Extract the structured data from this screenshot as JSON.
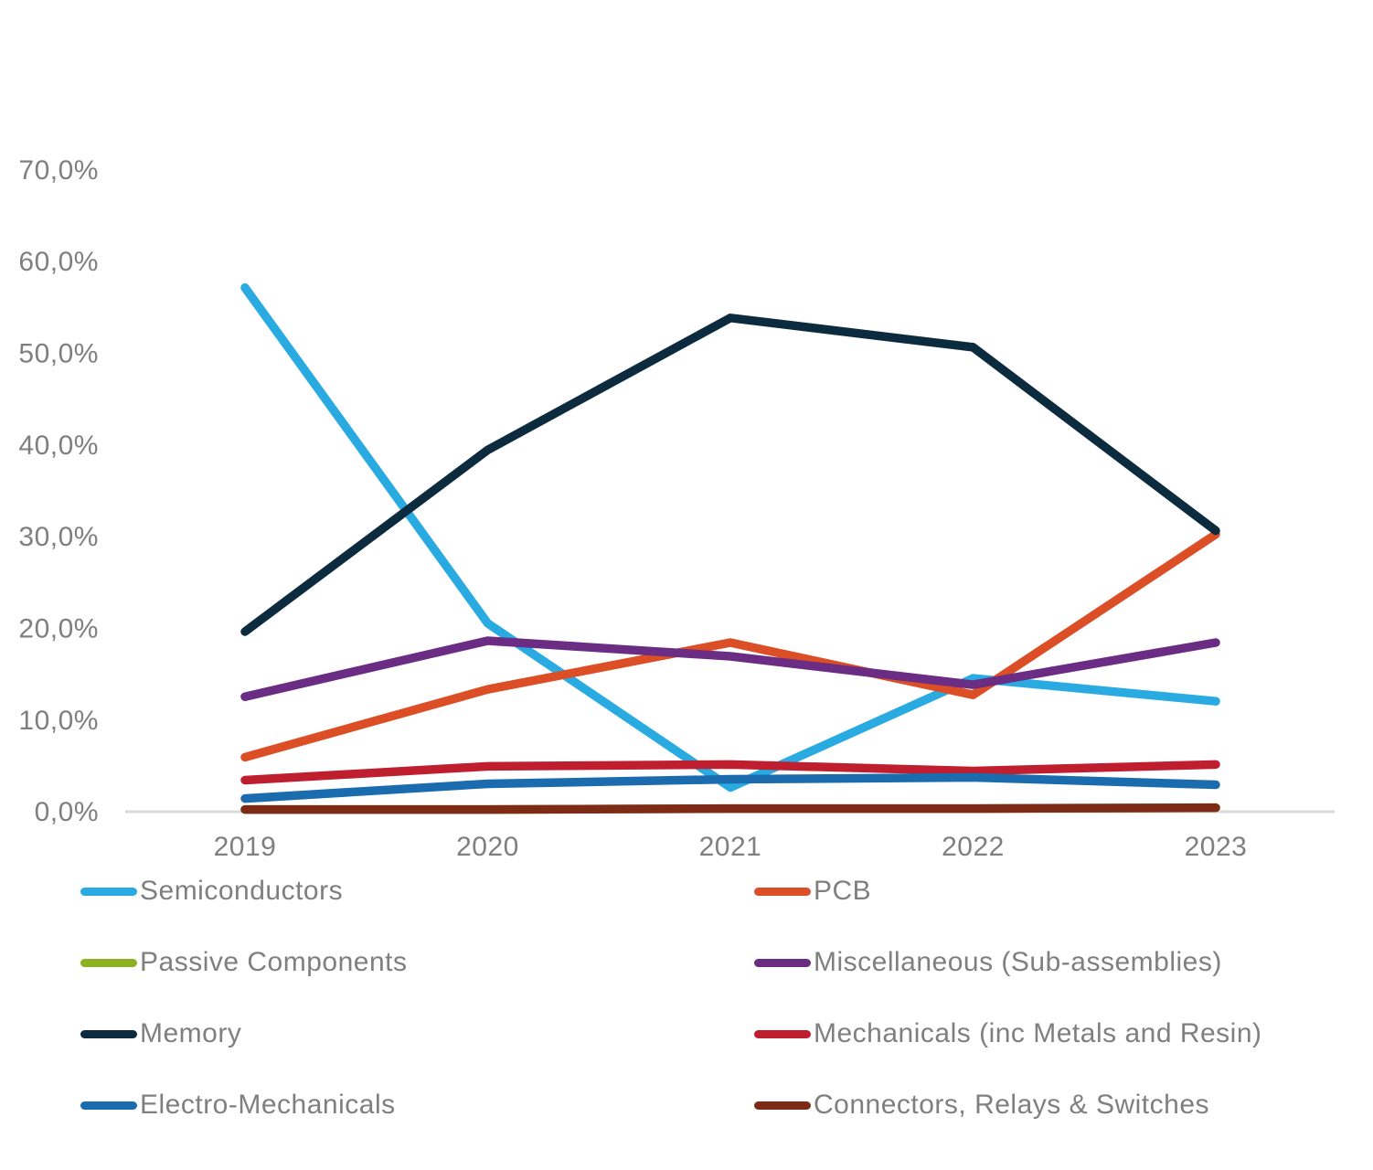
{
  "chart_data": {
    "type": "line",
    "title": "",
    "categories": [
      "2019",
      "2020",
      "2021",
      "2022",
      "2023"
    ],
    "series": [
      {
        "name": "Semiconductors",
        "color": "#29ABE2",
        "values": [
          57.1,
          20.5,
          2.6,
          14.5,
          12.0
        ]
      },
      {
        "name": "PCB",
        "color": "#DC4E26",
        "values": [
          5.9,
          13.3,
          18.4,
          12.7,
          30.2
        ]
      },
      {
        "name": "Passive Components",
        "color": "#8CB122",
        "values": [
          0.2,
          0.2,
          0.3,
          0.3,
          0.4
        ]
      },
      {
        "name": "Miscellaneous (Sub-assemblies)",
        "color": "#6B2C83",
        "values": [
          12.5,
          18.6,
          16.9,
          13.8,
          18.4
        ]
      },
      {
        "name": "Memory",
        "color": "#0D2B3F",
        "values": [
          19.6,
          39.4,
          53.8,
          50.6,
          30.6
        ]
      },
      {
        "name": "Mechanicals (inc Metals and Resin)",
        "color": "#BE1E2D",
        "values": [
          3.4,
          4.9,
          5.1,
          4.4,
          5.1
        ]
      },
      {
        "name": "Electro-Mechanicals",
        "color": "#1B6CAE",
        "values": [
          1.4,
          3.0,
          3.5,
          3.7,
          2.9
        ]
      },
      {
        "name": "Connectors, Relays & Switches",
        "color": "#7D2B17",
        "values": [
          0.2,
          0.2,
          0.3,
          0.3,
          0.4
        ]
      }
    ],
    "ylim": [
      0,
      70
    ],
    "ytick_step": 10,
    "yaxis_labels": [
      "70,0%",
      "60,0%",
      "50,0%",
      "40,0%",
      "30,0%",
      "20,0%",
      "10,0%",
      "0,0%"
    ],
    "yaxis_values": [
      70,
      60,
      50,
      40,
      30,
      20,
      10,
      0
    ],
    "grid": false,
    "legend_position": "bottom-two-columns"
  },
  "style": {
    "axis_color": "#D9D9D9",
    "text_color": "#7F7F7F"
  }
}
